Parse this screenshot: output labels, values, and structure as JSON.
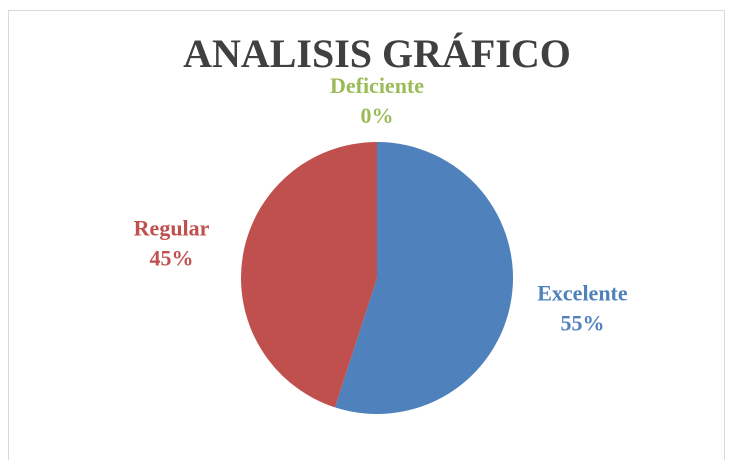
{
  "chart_data": {
    "type": "pie",
    "title": "ANALISIS GRÁFICO",
    "categories": [
      "Excelente",
      "Regular",
      "Deficiente"
    ],
    "values": [
      55,
      45,
      0
    ],
    "value_labels": [
      "55%",
      "45%",
      "0%"
    ],
    "colors": [
      "#4f81bd",
      "#c0504d",
      "#9bbb59"
    ]
  }
}
